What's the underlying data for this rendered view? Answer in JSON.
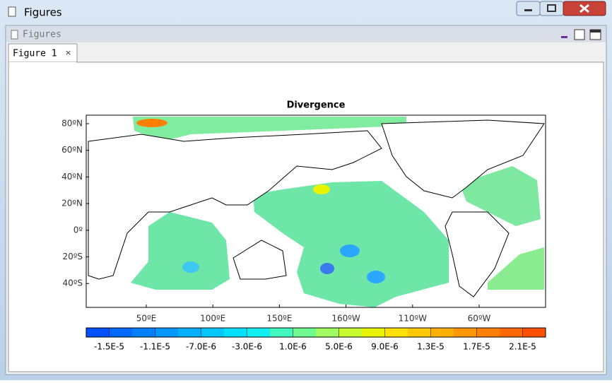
{
  "window": {
    "title": "Figures"
  },
  "panel": {
    "title": "Figures"
  },
  "tab": {
    "label": "Figure 1",
    "close": "×"
  },
  "figure": {
    "title": "Divergence",
    "yticks": [
      "80ºN",
      "60ºN",
      "40ºN",
      "20ºN",
      "0º",
      "20ºS",
      "40ºS"
    ],
    "xticks": [
      "50ºE",
      "100ºE",
      "150ºE",
      "160ºW",
      "110ºW",
      "60ºW"
    ],
    "colorbar": {
      "labels": [
        "-1.5E-5",
        "-1.1E-5",
        "-7.0E-6",
        "-3.0E-6",
        "1.0E-6",
        "5.0E-6",
        "9.0E-6",
        "1.3E-5",
        "1.7E-5",
        "2.1E-5"
      ],
      "colors": [
        "#0050ff",
        "#0068ff",
        "#0080ff",
        "#0098ff",
        "#00b0ff",
        "#00c8ff",
        "#00e0ff",
        "#10f0f0",
        "#40f8c0",
        "#70fb90",
        "#a0fc60",
        "#c8fa30",
        "#e8f400",
        "#ffe000",
        "#ffc800",
        "#ffb000",
        "#ff9800",
        "#ff8000",
        "#ff6800",
        "#ff5000"
      ]
    }
  }
}
